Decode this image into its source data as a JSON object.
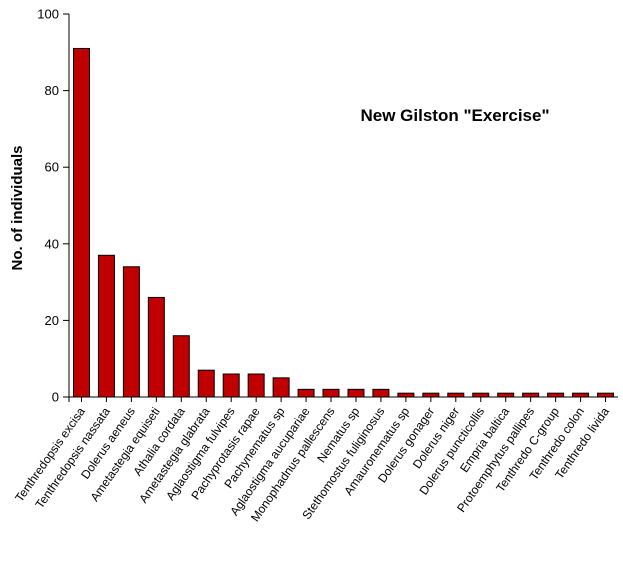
{
  "chart_data": {
    "type": "bar",
    "title": "New Gilston \"Exercise\"",
    "xlabel": "",
    "ylabel": "No. of individuals",
    "ylim": [
      0,
      100
    ],
    "yticks": [
      0,
      20,
      40,
      60,
      80,
      100
    ],
    "grid": false,
    "legend": "none",
    "bar_color": "#c00000",
    "categories": [
      "Tenthredopsis excisa",
      "Tenthredopsis nassata",
      "Dolerus aeneus",
      "Ametastegia equiseti",
      "Athalia cordata",
      "Ametastegia glabrata",
      "Aglaostigma fulvipes",
      "Pachyprotasis rapae",
      "Pachynematus sp",
      "Aglaostigma aucupariae",
      "Monophadnus pallescens",
      "Nematus sp",
      "Stethomostus fuliginosus",
      "Amauronematus sp",
      "Dolerus gonager",
      "Dolerus niger",
      "Dolerus puncticollis",
      "Empria baltica",
      "Protoemphytus pallipes",
      "Tenthredo C-group",
      "Tenthredo colon",
      "Tenthredo livida"
    ],
    "values": [
      91,
      37,
      34,
      26,
      16,
      7,
      6,
      6,
      5,
      2,
      2,
      2,
      2,
      1,
      1,
      1,
      1,
      1,
      1,
      1,
      1,
      1
    ]
  }
}
